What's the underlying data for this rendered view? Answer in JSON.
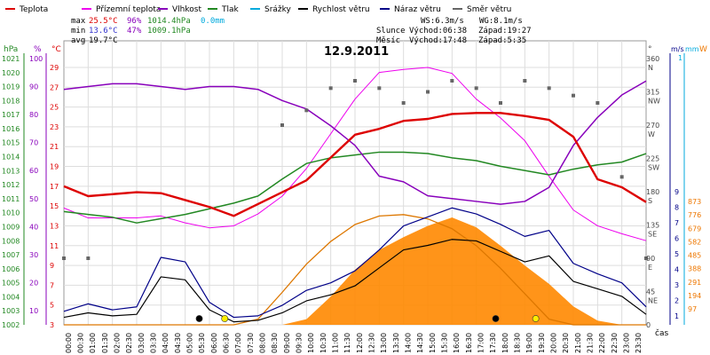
{
  "chart_data": {
    "type": "line",
    "title": "12.9.2011",
    "legend": [
      {
        "key": "teplota",
        "label": "Teplota",
        "color": "#dd0000"
      },
      {
        "key": "prizemni",
        "label": "Přízemní teplota",
        "color": "#ee00ee"
      },
      {
        "key": "vlhkost",
        "label": "Vlhkost",
        "color": "#8800bb"
      },
      {
        "key": "tlak",
        "label": "Tlak",
        "color": "#228822"
      },
      {
        "key": "srazky",
        "label": "Srážky",
        "color": "#00aadd"
      },
      {
        "key": "rychlost",
        "label": "Rychlost větru",
        "color": "#000000"
      },
      {
        "key": "naraz",
        "label": "Náraz větru",
        "color": "#000088"
      },
      {
        "key": "smer",
        "label": "Směr větru",
        "color": "#666666"
      }
    ],
    "stats": {
      "max": {
        "label": "max",
        "temp": "25.5°C",
        "hum": "96%",
        "press": "1014.4hPa",
        "rain": "0.0mm"
      },
      "min": {
        "label": "min",
        "temp": "13.6°C",
        "hum": "47%",
        "press": "1009.1hPa"
      },
      "avg": {
        "label": "avg",
        "temp": "19.7°C"
      }
    },
    "wind": {
      "ws": "WS:6.3m/s",
      "wg": "WG:8.1m/s"
    },
    "sun": {
      "label": "Slunce",
      "rise": "Východ:06:38",
      "set": "Západ:19:27"
    },
    "moon": {
      "label": "Měsíc",
      "rise": "Východ:17:48",
      "set": "Západ:5:35"
    },
    "axes": {
      "hpa_label": "hPa",
      "hpa_ticks": [
        "1021",
        "1020",
        "1019",
        "1018",
        "1017",
        "1016",
        "1015",
        "1014",
        "1013",
        "1012",
        "1011",
        "1010",
        "1009",
        "1008",
        "1007",
        "1006",
        "1005",
        "1004",
        "1003",
        "1002"
      ],
      "pct_label": "%",
      "pct_ticks": [
        "100",
        "90",
        "80",
        "70",
        "60",
        "50",
        "40",
        "30",
        "20",
        "10"
      ],
      "c_label": "°C",
      "c_ticks": [
        "29",
        "27",
        "25",
        "23",
        "21",
        "19",
        "17",
        "15",
        "13",
        "11",
        "9",
        "7",
        "5",
        "3"
      ],
      "deg_label": "°",
      "deg_ticks": [
        "360",
        "315",
        "270",
        "225",
        "180",
        "135",
        "90",
        "45",
        "0"
      ],
      "dir_ticks": [
        "N",
        "NW",
        "W",
        "SW",
        "S",
        "SE",
        "E",
        "NE"
      ],
      "ms_label": "m/s",
      "mm_label": "mm",
      "mm_top": "1",
      "ms_ticks": [
        "9",
        "8",
        "7",
        "6",
        "5",
        "4",
        "3",
        "2",
        "1"
      ],
      "w_label": "W",
      "w_ticks": [
        "873",
        "776",
        "679",
        "582",
        "485",
        "388",
        "291",
        "194",
        "97"
      ],
      "time_label": "čas",
      "x_ticks": [
        "00:00",
        "00:30",
        "01:00",
        "01:30",
        "02:00",
        "02:30",
        "03:00",
        "03:30",
        "04:00",
        "04:30",
        "05:00",
        "05:30",
        "06:00",
        "06:30",
        "07:00",
        "07:30",
        "08:00",
        "08:30",
        "09:00",
        "09:30",
        "10:00",
        "10:30",
        "11:00",
        "11:30",
        "12:00",
        "12:30",
        "13:00",
        "13:30",
        "14:00",
        "14:30",
        "15:00",
        "15:30",
        "16:00",
        "16:30",
        "17:00",
        "17:30",
        "18:00",
        "18:30",
        "19:00",
        "19:30",
        "20:00",
        "20:30",
        "21:00",
        "21:30",
        "22:00",
        "22:30",
        "23:00",
        "23:30"
      ]
    },
    "hours": [
      0,
      1,
      2,
      3,
      4,
      5,
      6,
      7,
      8,
      9,
      10,
      11,
      12,
      13,
      14,
      15,
      16,
      17,
      18,
      19,
      20,
      21,
      22,
      23,
      24
    ],
    "series": {
      "teplota_c": [
        17.0,
        16.0,
        16.2,
        16.4,
        16.3,
        15.6,
        14.9,
        14.0,
        15.2,
        16.4,
        17.6,
        19.9,
        22.2,
        22.8,
        23.6,
        23.8,
        24.3,
        24.4,
        24.4,
        24.1,
        23.7,
        22.0,
        17.7,
        16.9,
        15.4
      ],
      "prizemni_c": [
        14.8,
        13.8,
        13.8,
        13.8,
        14.0,
        13.3,
        12.8,
        13.0,
        14.2,
        16.0,
        18.8,
        22.3,
        25.8,
        28.5,
        28.8,
        29.0,
        28.4,
        25.8,
        23.9,
        21.6,
        18.0,
        14.6,
        13.0,
        12.2,
        11.5
      ],
      "vlhkost_pct": [
        89,
        90,
        91,
        91,
        90,
        89,
        90,
        90,
        89,
        85,
        82,
        76,
        69,
        58,
        56,
        51,
        50,
        49,
        48,
        49,
        54,
        69,
        79,
        87,
        92
      ],
      "tlak_hpa": [
        1010.0,
        1009.8,
        1009.6,
        1009.2,
        1009.5,
        1009.8,
        1010.2,
        1010.6,
        1011.1,
        1012.3,
        1013.4,
        1013.8,
        1014.0,
        1014.2,
        1014.2,
        1014.1,
        1013.8,
        1013.6,
        1013.2,
        1012.9,
        1012.6,
        1013.0,
        1013.3,
        1013.5,
        1014.1
      ],
      "rychlost_ms": [
        0.5,
        0.8,
        0.6,
        0.7,
        3.2,
        3.0,
        1.0,
        0.2,
        0.3,
        0.8,
        1.6,
        2.0,
        2.6,
        3.8,
        5.0,
        5.3,
        5.7,
        5.6,
        4.9,
        4.2,
        4.6,
        2.9,
        2.4,
        1.9,
        0.7
      ],
      "naraz_ms": [
        0.9,
        1.4,
        1.0,
        1.2,
        4.5,
        4.2,
        1.5,
        0.5,
        0.6,
        1.3,
        2.3,
        2.8,
        3.6,
        5.0,
        6.6,
        7.2,
        7.8,
        7.4,
        6.7,
        5.9,
        6.3,
        4.1,
        3.4,
        2.8,
        1.2
      ],
      "radiace_w": [
        0,
        0,
        0,
        0,
        0,
        0,
        0,
        0,
        0,
        0,
        40,
        200,
        390,
        530,
        620,
        700,
        760,
        690,
        560,
        420,
        290,
        130,
        30,
        0,
        0
      ],
      "teoreticka_radiace_w": [
        0,
        0,
        0,
        0,
        0,
        0,
        0,
        0,
        40,
        230,
        430,
        590,
        710,
        770,
        780,
        750,
        680,
        560,
        400,
        220,
        40,
        0,
        0,
        0,
        0
      ],
      "smer_deg": [
        90,
        90,
        null,
        null,
        null,
        null,
        null,
        null,
        null,
        270,
        290,
        320,
        330,
        320,
        300,
        315,
        330,
        320,
        300,
        330,
        320,
        310,
        300,
        200,
        90
      ]
    },
    "markers": {
      "moon_set": 5.58,
      "sun_rise": 6.63,
      "moon_rise": 17.8,
      "sun_set": 19.45
    },
    "xlim": [
      0,
      24
    ],
    "ylim_c": [
      3,
      29
    ],
    "ylim_pct": [
      10,
      100
    ],
    "ylim_hpa": [
      1002,
      1021
    ],
    "ylim_ms": [
      0,
      9
    ],
    "ylim_w": [
      0,
      873
    ],
    "grid": true
  }
}
